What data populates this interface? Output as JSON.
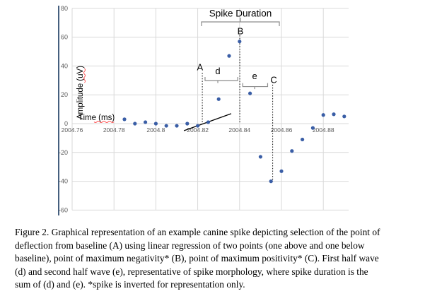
{
  "figure": {
    "caption_lines": [
      "Figure 2. Graphical representation of an example canine spike depicting selection of the point of",
      "deflection from baseline (A) using linear regression of two points (one above and one below",
      "baseline), point of maximum negativity* (B), point of maximum positivity* (C). First half wave",
      "(d) and second half wave (e), representative of spike morphology, where spike duration is the",
      "sum of (d) and (e). *spike is inverted for representation only."
    ]
  },
  "chart_data": {
    "type": "scatter",
    "xlabel": "Time (ms)",
    "ylabel": "Amplitude (uV)",
    "xlabel_misspelled_part": "(ms)",
    "ylabel_misspelled_part": "(uV)",
    "x": [
      2004.785,
      2004.79,
      2004.795,
      2004.8,
      2004.805,
      2004.81,
      2004.815,
      2004.82,
      2004.825,
      2004.83,
      2004.835,
      2004.84,
      2004.845,
      2004.85,
      2004.855,
      2004.86,
      2004.865,
      2004.87,
      2004.875,
      2004.88,
      2004.885,
      2004.89
    ],
    "y": [
      3,
      0,
      1,
      0,
      -1.5,
      -1.5,
      0,
      -1.5,
      1,
      17,
      47,
      57,
      21,
      -23,
      -40,
      -33,
      -19,
      -11,
      -3,
      6,
      6.5,
      5
    ],
    "xlim": [
      2004.76,
      2004.892
    ],
    "ylim": [
      -60,
      80
    ],
    "xticks": [
      2004.76,
      2004.78,
      2004.8,
      2004.82,
      2004.84,
      2004.86,
      2004.88
    ],
    "xtick_labels": [
      "2004.76",
      "2004.78",
      "2004.8",
      "2004.82",
      "2004.84",
      "2004.86",
      "2004.88"
    ],
    "yticks": [
      80,
      60,
      40,
      20,
      0,
      -20,
      -40,
      -60
    ],
    "ytick_labels": [
      "80",
      "60",
      "40",
      "20",
      "0",
      "-20",
      "-40",
      "-60"
    ],
    "grid": true,
    "legend": false,
    "regression_line": {
      "t1": 2004.8134,
      "v1": -4.9,
      "t2": 2004.836,
      "v2": 6.9
    },
    "annotations": [
      {
        "type": "bracket_over",
        "label": "Spike Duration",
        "t1": 2004.8218,
        "t2": 2004.859,
        "v": 70.6,
        "label_t": 2004.8404,
        "label_v": 76.5
      },
      {
        "type": "vline",
        "label": "B",
        "t": 2004.8401,
        "v_top": 61.3,
        "v_bottom": 0,
        "label_t": 2004.8404,
        "label_v": 64.2
      },
      {
        "type": "vline",
        "label": "A",
        "t": 2004.8222,
        "v_top": 35.3,
        "v_bottom": 0,
        "label_t": 2004.8211,
        "label_v": 39.2
      },
      {
        "type": "vline",
        "label": "C",
        "t": 2004.8558,
        "v_top": 27.0,
        "v_bottom": -40.3,
        "label_t": 2004.8563,
        "label_v": 30.4
      },
      {
        "type": "bracket_under",
        "label": "d",
        "t1": 2004.8235,
        "t2": 2004.8391,
        "v": 29.9,
        "label_t": 2004.8296,
        "label_v": 36.5
      },
      {
        "type": "bracket_under",
        "label": "e",
        "t1": 2004.8415,
        "t2": 2004.8534,
        "v": 25.7,
        "label_t": 2004.8472,
        "label_v": 33.1
      }
    ],
    "colors": {
      "marker": "#3a5ea6",
      "gridline": "#d9d9d9",
      "axis_line": "#17375e",
      "tick_text": "#595959",
      "bracket": "#8c8c8c",
      "dashed_line": "#262626",
      "regression_line": "#000000",
      "squiggle": "#ff5050",
      "text": "#000000"
    }
  }
}
